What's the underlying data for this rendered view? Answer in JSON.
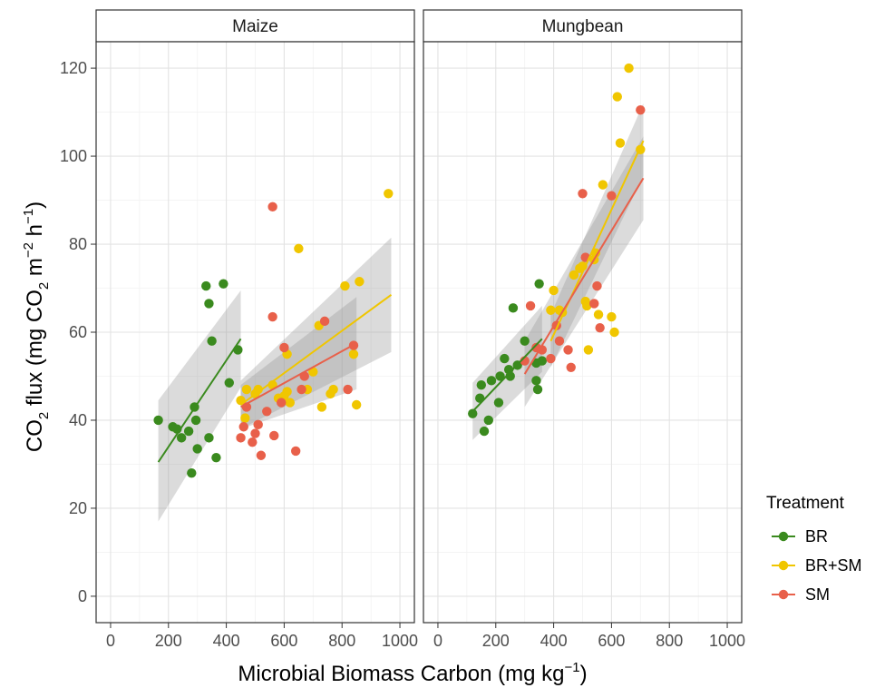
{
  "chart_data": {
    "type": "scatter",
    "facets": [
      "Maize",
      "Mungbean"
    ],
    "xlabel": {
      "prefix": "Microbial Biomass Carbon (mg kg",
      "sup": "−1",
      "suffix": ")"
    },
    "ylabel": {
      "p1": "CO",
      "s1": "2",
      "p2": " flux (mg CO",
      "s2": "2",
      "p3": " m",
      "u1": "−2",
      "p4": " h",
      "u2": "−1",
      "p5": ")"
    },
    "xlim": [
      -50,
      1050
    ],
    "ylim": [
      -6,
      126
    ],
    "xticks": [
      0,
      200,
      400,
      600,
      800,
      1000
    ],
    "yticks": [
      0,
      20,
      40,
      60,
      80,
      100,
      120
    ],
    "grid": true,
    "legend": {
      "title": "Treatment",
      "position": "right"
    },
    "series": [
      {
        "name": "BR",
        "color": "#3a8a1e",
        "points": {
          "Maize": [
            [
              165,
              40
            ],
            [
              215,
              38.5
            ],
            [
              230,
              38
            ],
            [
              245,
              36
            ],
            [
              270,
              37.5
            ],
            [
              280,
              28
            ],
            [
              290,
              43
            ],
            [
              295,
              40
            ],
            [
              300,
              33.5
            ],
            [
              330,
              70.5
            ],
            [
              340,
              66.5
            ],
            [
              340,
              36
            ],
            [
              350,
              58
            ],
            [
              365,
              31.5
            ],
            [
              390,
              71
            ],
            [
              410,
              48.5
            ],
            [
              440,
              56
            ]
          ],
          "Mungbean": [
            [
              120,
              41.5
            ],
            [
              145,
              45
            ],
            [
              150,
              48
            ],
            [
              160,
              37.5
            ],
            [
              175,
              40
            ],
            [
              185,
              49
            ],
            [
              210,
              44
            ],
            [
              215,
              50
            ],
            [
              230,
              54
            ],
            [
              245,
              51.5
            ],
            [
              250,
              50
            ],
            [
              260,
              65.5
            ],
            [
              275,
              52.5
            ],
            [
              300,
              58
            ],
            [
              340,
              53
            ],
            [
              340,
              49
            ],
            [
              345,
              47
            ],
            [
              350,
              71
            ],
            [
              360,
              53.5
            ]
          ]
        },
        "fits": {
          "Maize": {
            "x": [
              165,
              450
            ],
            "y": [
              30.5,
              58.5
            ],
            "ci_low": [
              17,
              47.5
            ],
            "ci_high": [
              44.5,
              69.5
            ]
          },
          "Mungbean": {
            "x": [
              120,
              360
            ],
            "y": [
              42,
              58.5
            ],
            "ci_low": [
              35.5,
              51
            ],
            "ci_high": [
              48.5,
              66
            ]
          }
        }
      },
      {
        "name": "BR+SM",
        "color": "#f0c600",
        "points": {
          "Maize": [
            [
              450,
              44.5
            ],
            [
              465,
              40.5
            ],
            [
              470,
              47
            ],
            [
              500,
              46
            ],
            [
              510,
              47
            ],
            [
              560,
              48
            ],
            [
              580,
              45
            ],
            [
              600,
              45.5
            ],
            [
              610,
              55
            ],
            [
              610,
              46.5
            ],
            [
              620,
              44
            ],
            [
              650,
              79
            ],
            [
              680,
              47
            ],
            [
              700,
              51
            ],
            [
              720,
              61.5
            ],
            [
              730,
              43
            ],
            [
              760,
              46
            ],
            [
              770,
              47
            ],
            [
              810,
              70.5
            ],
            [
              840,
              55
            ],
            [
              850,
              43.5
            ],
            [
              860,
              71.5
            ],
            [
              960,
              91.5
            ]
          ],
          "Mungbean": [
            [
              390,
              65
            ],
            [
              400,
              69.5
            ],
            [
              420,
              65
            ],
            [
              430,
              64.5
            ],
            [
              470,
              73
            ],
            [
              490,
              74.5
            ],
            [
              500,
              75
            ],
            [
              510,
              67
            ],
            [
              515,
              66
            ],
            [
              520,
              56
            ],
            [
              540,
              76.5
            ],
            [
              545,
              78
            ],
            [
              555,
              64
            ],
            [
              570,
              93.5
            ],
            [
              600,
              63.5
            ],
            [
              610,
              60
            ],
            [
              620,
              113.5
            ],
            [
              630,
              103
            ],
            [
              660,
              120
            ],
            [
              700,
              101.5
            ]
          ]
        },
        "fits": {
          "Maize": {
            "x": [
              450,
              970
            ],
            "y": [
              43.5,
              68.5
            ],
            "ci_low": [
              38,
              55.5
            ],
            "ci_high": [
              49,
              81.5
            ]
          },
          "Mungbean": {
            "x": [
              390,
              710
            ],
            "y": [
              58,
              103.5
            ],
            "ci_low": [
              52,
              95.5
            ],
            "ci_high": [
              64,
              112
            ]
          }
        }
      },
      {
        "name": "SM",
        "color": "#e8604a",
        "points": {
          "Maize": [
            [
              450,
              36
            ],
            [
              460,
              38.5
            ],
            [
              470,
              43
            ],
            [
              490,
              35
            ],
            [
              500,
              37
            ],
            [
              510,
              39
            ],
            [
              520,
              32
            ],
            [
              540,
              42
            ],
            [
              560,
              88.5
            ],
            [
              560,
              63.5
            ],
            [
              565,
              36.5
            ],
            [
              590,
              44
            ],
            [
              600,
              56.5
            ],
            [
              640,
              33
            ],
            [
              660,
              47
            ],
            [
              670,
              50
            ],
            [
              740,
              62.5
            ],
            [
              820,
              47
            ],
            [
              840,
              57
            ]
          ],
          "Mungbean": [
            [
              300,
              53.5
            ],
            [
              320,
              66
            ],
            [
              340,
              56.5
            ],
            [
              360,
              56
            ],
            [
              390,
              54
            ],
            [
              410,
              61.5
            ],
            [
              420,
              58
            ],
            [
              450,
              56
            ],
            [
              460,
              52
            ],
            [
              500,
              91.5
            ],
            [
              510,
              77
            ],
            [
              540,
              66.5
            ],
            [
              550,
              70.5
            ],
            [
              560,
              61
            ],
            [
              600,
              91
            ],
            [
              700,
              110.5
            ]
          ]
        },
        "fits": {
          "Maize": {
            "x": [
              450,
              850
            ],
            "y": [
              43,
              57.5
            ],
            "ci_low": [
              38,
              47
            ],
            "ci_high": [
              48,
              68
            ]
          },
          "Mungbean": {
            "x": [
              300,
              710
            ],
            "y": [
              50.5,
              95
            ],
            "ci_low": [
              43,
              85.5
            ],
            "ci_high": [
              58,
              104.5
            ]
          }
        }
      }
    ]
  }
}
